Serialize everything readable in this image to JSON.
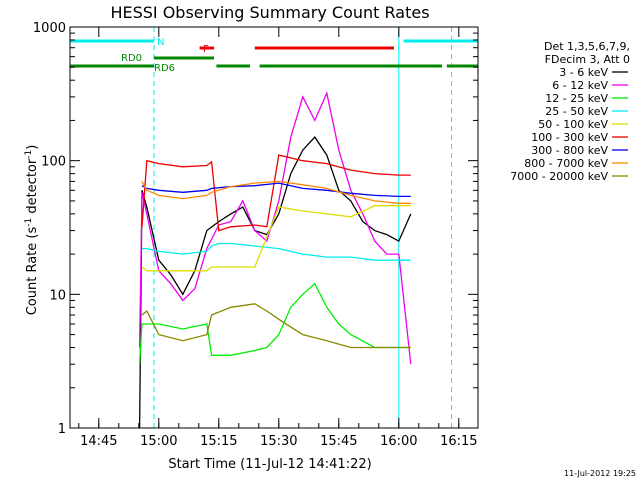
{
  "chart_data": {
    "type": "line",
    "title": "HESSI Observing Summary Count Rates",
    "xlabel": "Start Time (11-Jul-12 14:41:22)",
    "ylabel": "Count Rate (s",
    "ylabel_sup": "-1",
    "ylabel_mid": " detector",
    "ylabel_end": ")",
    "yscale": "log",
    "ylim": [
      1,
      1000
    ],
    "xlim_minutes": [
      14.63,
      16.33
    ],
    "x_ticks": [
      {
        "label": "14:45",
        "t": 14.75
      },
      {
        "label": "15:00",
        "t": 15.0
      },
      {
        "label": "15:15",
        "t": 15.25
      },
      {
        "label": "15:30",
        "t": 15.5
      },
      {
        "label": "15:45",
        "t": 15.75
      },
      {
        "label": "16:00",
        "t": 16.0
      },
      {
        "label": "16:15",
        "t": 16.25
      }
    ],
    "y_ticks": [
      {
        "label": "1",
        "v": 1
      },
      {
        "label": "10",
        "v": 10
      },
      {
        "label": "100",
        "v": 100
      },
      {
        "label": "1000",
        "v": 1000
      }
    ],
    "legend_header": [
      "Det 1,3,5,6,7,9,",
      "FDecim 3, Att 0"
    ],
    "series": [
      {
        "name": "3 - 6 keV",
        "color": "#000000",
        "points": [
          [
            14.92,
            1
          ],
          [
            14.93,
            60
          ],
          [
            14.95,
            45
          ],
          [
            15.0,
            18
          ],
          [
            15.05,
            14
          ],
          [
            15.1,
            10
          ],
          [
            15.15,
            15
          ],
          [
            15.2,
            30
          ],
          [
            15.25,
            35
          ],
          [
            15.3,
            40
          ],
          [
            15.35,
            45
          ],
          [
            15.4,
            30
          ],
          [
            15.45,
            28
          ],
          [
            15.5,
            40
          ],
          [
            15.55,
            80
          ],
          [
            15.6,
            120
          ],
          [
            15.65,
            150
          ],
          [
            15.7,
            110
          ],
          [
            15.75,
            60
          ],
          [
            15.8,
            50
          ],
          [
            15.85,
            35
          ],
          [
            15.9,
            30
          ],
          [
            15.95,
            28
          ],
          [
            16.0,
            25
          ],
          [
            16.05,
            40
          ]
        ]
      },
      {
        "name": "6 - 12 keV",
        "color": "#ee00ee",
        "points": [
          [
            14.92,
            4
          ],
          [
            14.93,
            58
          ],
          [
            14.95,
            40
          ],
          [
            15.0,
            15
          ],
          [
            15.05,
            12
          ],
          [
            15.1,
            9
          ],
          [
            15.15,
            11
          ],
          [
            15.2,
            22
          ],
          [
            15.25,
            33
          ],
          [
            15.3,
            35
          ],
          [
            15.35,
            50
          ],
          [
            15.4,
            30
          ],
          [
            15.45,
            25
          ],
          [
            15.5,
            50
          ],
          [
            15.55,
            150
          ],
          [
            15.6,
            300
          ],
          [
            15.65,
            200
          ],
          [
            15.7,
            320
          ],
          [
            15.75,
            120
          ],
          [
            15.8,
            60
          ],
          [
            15.85,
            40
          ],
          [
            15.9,
            25
          ],
          [
            15.95,
            20
          ],
          [
            16.0,
            20
          ],
          [
            16.05,
            3
          ]
        ]
      },
      {
        "name": "12 - 25 keV",
        "color": "#00ee00",
        "points": [
          [
            14.92,
            3
          ],
          [
            14.93,
            6
          ],
          [
            14.95,
            6
          ],
          [
            15.0,
            6
          ],
          [
            15.1,
            5.5
          ],
          [
            15.2,
            6
          ],
          [
            15.22,
            3.5
          ],
          [
            15.3,
            3.5
          ],
          [
            15.4,
            3.8
          ],
          [
            15.45,
            4
          ],
          [
            15.5,
            5
          ],
          [
            15.55,
            8
          ],
          [
            15.6,
            10
          ],
          [
            15.65,
            12
          ],
          [
            15.7,
            8
          ],
          [
            15.75,
            6
          ],
          [
            15.8,
            5
          ],
          [
            15.9,
            4
          ],
          [
            16.0,
            4
          ],
          [
            16.05,
            4
          ]
        ]
      },
      {
        "name": "25 - 50 keV",
        "color": "#00eeee",
        "points": [
          [
            14.93,
            22
          ],
          [
            14.95,
            22
          ],
          [
            15.0,
            21
          ],
          [
            15.1,
            20
          ],
          [
            15.2,
            21
          ],
          [
            15.22,
            23
          ],
          [
            15.25,
            24
          ],
          [
            15.3,
            24
          ],
          [
            15.4,
            23
          ],
          [
            15.5,
            22
          ],
          [
            15.6,
            20
          ],
          [
            15.7,
            19
          ],
          [
            15.8,
            19
          ],
          [
            15.9,
            18
          ],
          [
            16.0,
            18
          ],
          [
            16.05,
            18
          ]
        ]
      },
      {
        "name": "50 - 100 keV",
        "color": "#dddd00",
        "points": [
          [
            14.93,
            16
          ],
          [
            14.95,
            15
          ],
          [
            15.0,
            15
          ],
          [
            15.1,
            15
          ],
          [
            15.2,
            15
          ],
          [
            15.22,
            16
          ],
          [
            15.3,
            16
          ],
          [
            15.4,
            16
          ],
          [
            15.5,
            45
          ],
          [
            15.6,
            42
          ],
          [
            15.7,
            40
          ],
          [
            15.8,
            38
          ],
          [
            15.9,
            46
          ],
          [
            16.0,
            46
          ],
          [
            16.05,
            46
          ]
        ]
      },
      {
        "name": "100 - 300 keV",
        "color": "#ee0000",
        "points": [
          [
            14.93,
            32
          ],
          [
            14.95,
            100
          ],
          [
            15.0,
            95
          ],
          [
            15.1,
            90
          ],
          [
            15.2,
            92
          ],
          [
            15.22,
            98
          ],
          [
            15.25,
            30
          ],
          [
            15.3,
            32
          ],
          [
            15.4,
            33
          ],
          [
            15.45,
            32
          ],
          [
            15.5,
            110
          ],
          [
            15.6,
            100
          ],
          [
            15.7,
            95
          ],
          [
            15.8,
            85
          ],
          [
            15.9,
            80
          ],
          [
            16.0,
            78
          ],
          [
            16.05,
            78
          ]
        ]
      },
      {
        "name": "300 - 800 keV",
        "color": "#0000ee",
        "points": [
          [
            14.93,
            65
          ],
          [
            14.95,
            62
          ],
          [
            15.0,
            60
          ],
          [
            15.1,
            58
          ],
          [
            15.2,
            60
          ],
          [
            15.22,
            62
          ],
          [
            15.3,
            64
          ],
          [
            15.4,
            65
          ],
          [
            15.5,
            68
          ],
          [
            15.6,
            62
          ],
          [
            15.7,
            60
          ],
          [
            15.8,
            57
          ],
          [
            15.9,
            55
          ],
          [
            16.0,
            54
          ],
          [
            16.05,
            54
          ]
        ]
      },
      {
        "name": "800 - 7000 keV",
        "color": "#ff8800",
        "points": [
          [
            14.93,
            70
          ],
          [
            14.95,
            60
          ],
          [
            15.0,
            55
          ],
          [
            15.1,
            52
          ],
          [
            15.2,
            55
          ],
          [
            15.22,
            58
          ],
          [
            15.3,
            64
          ],
          [
            15.4,
            68
          ],
          [
            15.5,
            70
          ],
          [
            15.6,
            66
          ],
          [
            15.7,
            62
          ],
          [
            15.8,
            55
          ],
          [
            15.9,
            50
          ],
          [
            16.0,
            48
          ],
          [
            16.05,
            48
          ]
        ]
      },
      {
        "name": "7000 - 20000 keV",
        "color": "#888800",
        "points": [
          [
            14.93,
            7
          ],
          [
            14.95,
            7.5
          ],
          [
            15.0,
            5
          ],
          [
            15.1,
            4.5
          ],
          [
            15.2,
            5
          ],
          [
            15.22,
            7
          ],
          [
            15.3,
            8
          ],
          [
            15.4,
            8.5
          ],
          [
            15.45,
            7.5
          ],
          [
            15.5,
            6.5
          ],
          [
            15.6,
            5
          ],
          [
            15.7,
            4.5
          ],
          [
            15.8,
            4
          ],
          [
            15.9,
            4
          ],
          [
            16.0,
            4
          ],
          [
            16.05,
            4
          ]
        ]
      }
    ],
    "flags": [
      {
        "name": "N",
        "color": "#00eeee",
        "label": "N",
        "segments": [
          [
            14.63,
            14.98
          ],
          [
            16.02,
            16.33
          ]
        ]
      },
      {
        "name": "F",
        "color": "#ee0000",
        "label": "F",
        "segments": [
          [
            15.17,
            15.23
          ],
          [
            15.4,
            15.98
          ]
        ]
      },
      {
        "name": "RD0",
        "color": "#008800",
        "label": "RD0",
        "segments": [
          [
            14.98,
            15.23
          ]
        ]
      },
      {
        "name": "RD6",
        "color": "#008800",
        "label": "RD6",
        "segments": [
          [
            14.63,
            14.98
          ],
          [
            15.24,
            15.38
          ],
          [
            15.42,
            16.18
          ],
          [
            16.2,
            16.33
          ]
        ]
      }
    ],
    "vlines": [
      {
        "t": 14.98,
        "color": "#00eeee",
        "style": "dashed"
      },
      {
        "t": 16.0,
        "color": "#00eeee",
        "style": "solid"
      },
      {
        "t": 16.22,
        "color": "#00eeee",
        "style": "dashed"
      }
    ],
    "footer": "11-Jul-2012 19:25"
  }
}
